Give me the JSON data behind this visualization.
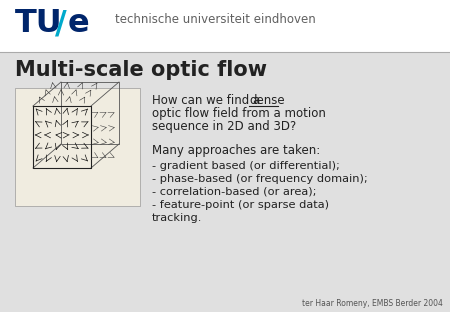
{
  "bg_color": "#e0e0e0",
  "header_bg": "#ffffff",
  "tu_color": "#00256b",
  "slash_color": "#00aacc",
  "univ_text": "technische universiteit eindhoven",
  "univ_color": "#606060",
  "title": "Multi-scale optic flow",
  "title_color": "#222222",
  "footer_text": "ter Haar Romeny, EMBS Berder 2004",
  "text_color": "#222222",
  "footer_color": "#555555"
}
